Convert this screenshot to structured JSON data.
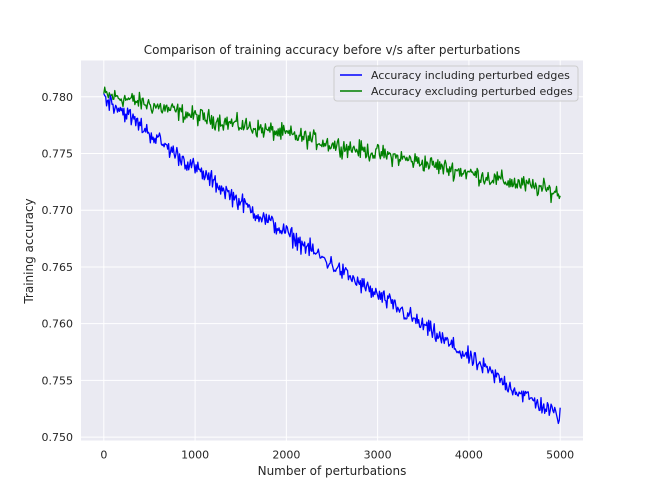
{
  "chart_data": {
    "type": "line",
    "title": "Comparison of training accuracy before v/s after perturbations",
    "xlabel": "Number of perturbations",
    "ylabel": "Training accuracy",
    "xlim": [
      -250,
      5250
    ],
    "ylim": [
      0.7497,
      0.7832
    ],
    "xticks": [
      0,
      1000,
      2000,
      3000,
      4000,
      5000
    ],
    "xtick_labels": [
      "0",
      "1000",
      "2000",
      "3000",
      "4000",
      "5000"
    ],
    "yticks": [
      0.75,
      0.755,
      0.76,
      0.765,
      0.77,
      0.775,
      0.78
    ],
    "ytick_labels": [
      "0.750",
      "0.755",
      "0.760",
      "0.765",
      "0.770",
      "0.775",
      "0.780"
    ],
    "grid": true,
    "legend_position": "top-right",
    "series": [
      {
        "name": "Accuracy including perturbed edges",
        "color": "#0000ff",
        "x": [
          0,
          250,
          500,
          750,
          1000,
          1250,
          1500,
          1750,
          2000,
          2250,
          2500,
          2750,
          3000,
          3250,
          3500,
          3750,
          4000,
          4250,
          4500,
          4750,
          5000
        ],
        "y": [
          0.78,
          0.7785,
          0.7768,
          0.7752,
          0.7737,
          0.7722,
          0.7707,
          0.7693,
          0.768,
          0.7666,
          0.7652,
          0.7638,
          0.7625,
          0.7612,
          0.7598,
          0.7584,
          0.757,
          0.7556,
          0.7542,
          0.753,
          0.7518
        ],
        "noise_amplitude": 0.0006
      },
      {
        "name": "Accuracy excluding perturbed edges",
        "color": "#008000",
        "x": [
          0,
          250,
          500,
          750,
          1000,
          1250,
          1500,
          1750,
          2000,
          2250,
          2500,
          2750,
          3000,
          3250,
          3500,
          3750,
          4000,
          4250,
          4500,
          4750,
          5000
        ],
        "y": [
          0.7802,
          0.7798,
          0.7793,
          0.7788,
          0.7783,
          0.7779,
          0.7775,
          0.7771,
          0.7767,
          0.7763,
          0.7758,
          0.7754,
          0.775,
          0.7746,
          0.7742,
          0.7737,
          0.7733,
          0.7728,
          0.7724,
          0.772,
          0.7715
        ],
        "noise_amplitude": 0.0006
      }
    ]
  }
}
